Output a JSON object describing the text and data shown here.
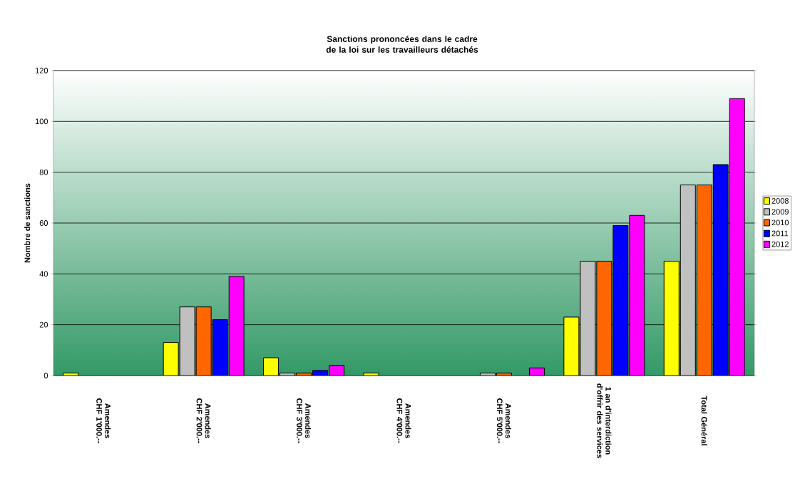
{
  "chart_data": {
    "type": "bar",
    "title": "Sanctions prononcées dans le cadre de la loi sur les travailleurs détachés",
    "ylabel": "Nombre de sanctions",
    "categories": [
      "Amendes CHF 1'000.--",
      "Amendes CHF 2'000.--",
      "Amendes CHF 3'000.--",
      "Amendes CHF 4'000.--",
      "Amendes CHF 5'000.--",
      "1 an d'interdiction d'offrir des services",
      "Total Général"
    ],
    "series": [
      {
        "name": "2008",
        "color": "#ffff00",
        "values": [
          1,
          13,
          7,
          1,
          null,
          23,
          45
        ]
      },
      {
        "name": "2009",
        "color": "#c0c0c0",
        "values": [
          null,
          27,
          1,
          null,
          1,
          45,
          75
        ]
      },
      {
        "name": "2010",
        "color": "#ff6600",
        "values": [
          null,
          27,
          1,
          null,
          1,
          45,
          75
        ]
      },
      {
        "name": "2011",
        "color": "#0000ff",
        "values": [
          null,
          22,
          2,
          null,
          null,
          59,
          83
        ]
      },
      {
        "name": "2012",
        "color": "#ff00ff",
        "values": [
          null,
          39,
          4,
          null,
          3,
          63,
          109
        ]
      }
    ],
    "ylim": [
      0,
      120
    ],
    "yticks": [
      0,
      20,
      40,
      60,
      80,
      100,
      120
    ],
    "grid": "y",
    "legend": "right"
  }
}
